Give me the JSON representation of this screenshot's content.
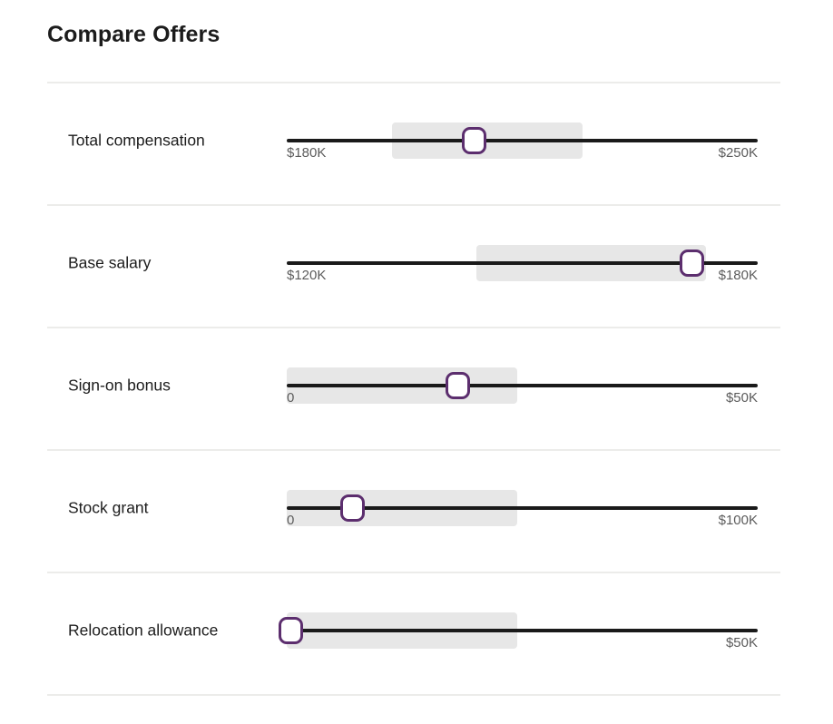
{
  "page": {
    "title": "Compare Offers"
  },
  "colors": {
    "accent_purple": "#5c2e6e",
    "band_gray": "#e7e7e7",
    "track_black": "#1a1a1a",
    "divider": "#ececea",
    "value_label_gray": "#5c5c5c",
    "label_dark": "#1c1c1c",
    "background": "#ffffff"
  },
  "sliders": [
    {
      "label": "Total compensation",
      "min_label": "$180K",
      "max_label": "$250K",
      "band_start_pct": 22.4,
      "band_end_pct": 62.8,
      "handle_pct": 39.7
    },
    {
      "label": "Base salary",
      "min_label": "$120K",
      "max_label": "$180K",
      "band_start_pct": 40.3,
      "band_end_pct": 89.0,
      "handle_pct": 86.1
    },
    {
      "label": "Sign-on bonus",
      "min_label": "0",
      "max_label": "$50K",
      "band_start_pct": 0,
      "band_end_pct": 48.9,
      "handle_pct": 36.4
    },
    {
      "label": "Stock grant",
      "min_label": "0",
      "max_label": "$100K",
      "band_start_pct": 0,
      "band_end_pct": 48.9,
      "handle_pct": 13.9
    },
    {
      "label": "Relocation allowance",
      "min_label": "",
      "max_label": "$50K",
      "band_start_pct": 0,
      "band_end_pct": 48.9,
      "handle_pct": 0.8
    }
  ]
}
